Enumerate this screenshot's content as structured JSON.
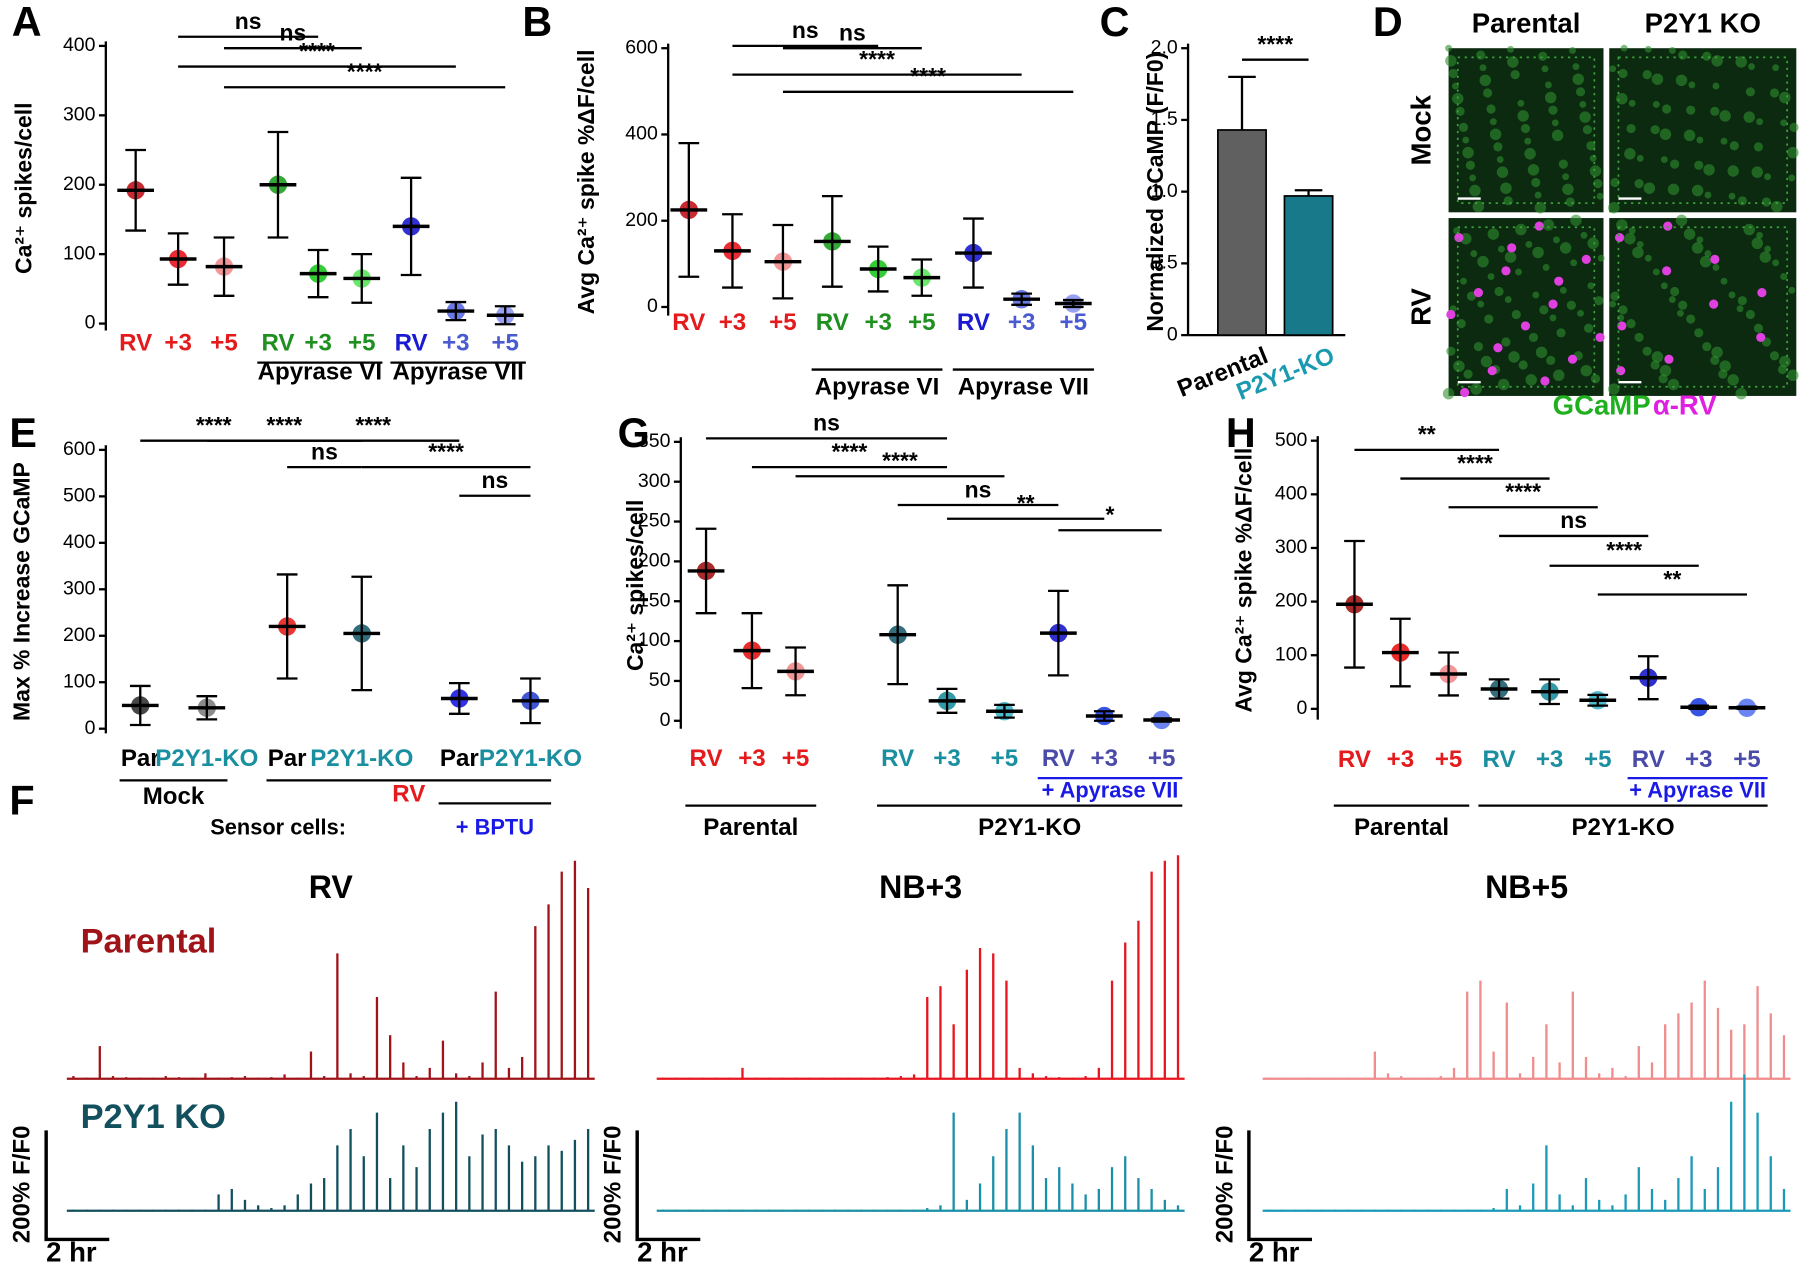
{
  "chart_data": [
    {
      "type": "dot",
      "label": "A",
      "ylabel": "Ca²⁺ spikes/cell",
      "categories": [
        "RV",
        "+3",
        "+5",
        "RV",
        "+3",
        "+5",
        "RV",
        "+3",
        "+5"
      ],
      "values": [
        192,
        93,
        82,
        200,
        72,
        65,
        140,
        18,
        12
      ],
      "errors": [
        58,
        37,
        42,
        76,
        34,
        35,
        70,
        13,
        13
      ],
      "colors": [
        "#c0141e",
        "#e8141e",
        "#f08c8c",
        "#1fa01f",
        "#1fc81f",
        "#5ae65a",
        "#1a1ad2",
        "#5a6ae0",
        "#8c96f0"
      ],
      "label_colors": [
        "#e41a1c",
        "#e41a1c",
        "#e41a1c",
        "#1f8f1f",
        "#1f8f1f",
        "#1f8f1f",
        "#1a1ad2",
        "#4a5ad0",
        "#4a5ad0"
      ],
      "ylim": [
        -10,
        400
      ],
      "yticks": [
        0,
        100,
        200,
        300,
        400
      ],
      "significance": [
        "ns",
        "ns",
        "****",
        "****"
      ],
      "groups": [
        "Apyrase VI",
        "Apyrase VII"
      ]
    },
    {
      "type": "dot",
      "label": "B",
      "ylabel": "Avg Ca²⁺ spike %ΔF/cell",
      "categories": [
        "RV",
        "+3",
        "+5",
        "RV",
        "+3",
        "+5",
        "RV",
        "+3",
        "+5"
      ],
      "values": [
        225,
        130,
        105,
        152,
        88,
        68,
        125,
        18,
        8
      ],
      "errors": [
        155,
        85,
        85,
        105,
        52,
        42,
        80,
        13,
        8
      ],
      "colors": [
        "#c0141e",
        "#e8141e",
        "#f08c8c",
        "#1fa01f",
        "#1fc81f",
        "#5ae65a",
        "#1a1ad2",
        "#5a6ae0",
        "#8c96f0"
      ],
      "label_colors": [
        "#e41a1c",
        "#e41a1c",
        "#e41a1c",
        "#1f8f1f",
        "#1f8f1f",
        "#1f8f1f",
        "#1a1ad2",
        "#4a5ad0",
        "#4a5ad0"
      ],
      "ylim": [
        -20,
        600
      ],
      "yticks": [
        0,
        200,
        400,
        600
      ],
      "significance": [
        "ns",
        "ns",
        "****",
        "****"
      ],
      "groups": [
        "Apyrase VI",
        "Apyrase VII"
      ]
    },
    {
      "type": "bar",
      "label": "C",
      "ylabel": "Normalized GCaMP (F/F0)",
      "categories": [
        "Parental",
        "P2Y1-KO"
      ],
      "values": [
        1.43,
        0.97
      ],
      "errors": [
        0.37,
        0.04
      ],
      "colors": [
        "#606060",
        "#17798a"
      ],
      "label_colors": [
        "#000000",
        "#1a9ab0"
      ],
      "ylim": [
        0,
        2.0
      ],
      "yticks": [
        0,
        0.5,
        {
          "value": 1.0,
          "label": "1.0"
        },
        1.5,
        {
          "value": 2.0,
          "label": "2.0"
        }
      ],
      "significance": [
        "****"
      ]
    },
    {
      "type": "image",
      "label": "D",
      "columns": [
        "Parental",
        "P2Y1 KO"
      ],
      "rows": [
        "Mock",
        "RV"
      ],
      "legend": [
        "GCaMP",
        "α-RV"
      ]
    },
    {
      "type": "dot",
      "label": "E",
      "ylabel": "Max % Increase GCaMP",
      "categories": [
        "Par",
        "P2Y1-KO",
        "Par",
        "P2Y1-KO",
        "Par",
        "P2Y1-KO"
      ],
      "values": [
        50,
        45,
        220,
        205,
        65,
        60
      ],
      "errors": [
        42,
        25,
        112,
        122,
        33,
        48
      ],
      "colors": [
        "#333333",
        "#808080",
        "#e8201a",
        "#1d5e6e",
        "#1a1ae6",
        "#2a44d0"
      ],
      "label_colors": [
        "#000000",
        "#1a8fa0",
        "#000000",
        "#1a8fa0",
        "#000000",
        "#1a8fa0"
      ],
      "ylim": [
        -10,
        600
      ],
      "yticks": [
        0,
        100,
        200,
        300,
        400,
        500,
        600
      ],
      "significance": [
        "****",
        "****",
        "ns",
        "****",
        "****",
        "ns"
      ],
      "groups": [
        "Mock",
        "RV"
      ],
      "note": "Sensor cells:",
      "treatment": "+ BPTU"
    },
    {
      "type": "trace",
      "label": "F",
      "titles": [
        "RV",
        "NB+3",
        "NB+5"
      ],
      "rows": [
        "Parental",
        "P2Y1 KO"
      ],
      "scale_y": "200% F/F0",
      "scale_x": "2 hr",
      "series": [
        {
          "color": "#a01419",
          "values": [
            5,
            2,
            60,
            5,
            3,
            2,
            2,
            5,
            3,
            2,
            10,
            2,
            3,
            5,
            2,
            3,
            8,
            2,
            50,
            5,
            230,
            10,
            5,
            150,
            80,
            30,
            5,
            20,
            70,
            10,
            5,
            30,
            160,
            20,
            40,
            280,
            320,
            380,
            400,
            350
          ]
        },
        {
          "color": "#12505e",
          "values": [
            2,
            2,
            2,
            2,
            2,
            2,
            2,
            2,
            2,
            2,
            2,
            30,
            40,
            20,
            10,
            5,
            10,
            30,
            50,
            60,
            120,
            150,
            100,
            180,
            60,
            120,
            80,
            150,
            180,
            200,
            100,
            140,
            150,
            120,
            90,
            100,
            120,
            110,
            130,
            150
          ]
        },
        {
          "color": "#e8141e",
          "values": [
            2,
            2,
            2,
            2,
            2,
            2,
            20,
            2,
            2,
            2,
            2,
            2,
            2,
            2,
            2,
            2,
            2,
            3,
            5,
            8,
            150,
            170,
            100,
            200,
            240,
            230,
            180,
            20,
            10,
            5,
            3,
            2,
            5,
            20,
            180,
            250,
            290,
            380,
            400,
            410
          ]
        },
        {
          "color": "#1a8fa8",
          "values": [
            2,
            2,
            2,
            2,
            2,
            2,
            2,
            2,
            2,
            2,
            2,
            2,
            2,
            2,
            2,
            2,
            2,
            2,
            2,
            2,
            5,
            10,
            180,
            20,
            50,
            100,
            150,
            180,
            120,
            60,
            80,
            50,
            30,
            40,
            80,
            100,
            60,
            40,
            20,
            10
          ]
        },
        {
          "color": "#f08c8c",
          "values": [
            2,
            2,
            2,
            2,
            2,
            2,
            2,
            2,
            50,
            10,
            5,
            2,
            2,
            5,
            20,
            160,
            180,
            50,
            140,
            10,
            40,
            100,
            30,
            160,
            40,
            10,
            20,
            5,
            60,
            30,
            100,
            120,
            140,
            180,
            130,
            90,
            100,
            170,
            120,
            80
          ]
        },
        {
          "color": "#1a9ab8",
          "values": [
            2,
            2,
            2,
            2,
            2,
            2,
            2,
            2,
            2,
            2,
            2,
            2,
            2,
            2,
            2,
            2,
            2,
            5,
            40,
            10,
            50,
            120,
            30,
            10,
            60,
            20,
            10,
            30,
            80,
            40,
            20,
            60,
            100,
            40,
            80,
            200,
            250,
            180,
            100,
            40
          ]
        }
      ]
    },
    {
      "type": "dot",
      "label": "G",
      "ylabel": "Ca²⁺ spikes/cell",
      "categories": [
        "RV",
        "+3",
        "+5",
        "RV",
        "+3",
        "+5",
        "RV",
        "+3",
        "+5"
      ],
      "values": [
        188,
        88,
        62,
        108,
        25,
        12,
        110,
        6,
        1
      ],
      "errors": [
        53,
        47,
        30,
        62,
        15,
        8,
        53,
        6,
        2
      ],
      "colors": [
        "#a01414",
        "#e81414",
        "#f08c8c",
        "#1d5e6e",
        "#1d8fa0",
        "#3cb4c8",
        "#1a1ac8",
        "#2040e0",
        "#5a78f0"
      ],
      "label_colors": [
        "#e41a1c",
        "#e41a1c",
        "#e41a1c",
        "#1a8fa0",
        "#1a8fa0",
        "#1a8fa0",
        "#4a4aa8",
        "#4a4aa8",
        "#4a4aa8"
      ],
      "ylim": [
        -10,
        350
      ],
      "yticks": [
        0,
        50,
        100,
        150,
        200,
        250,
        300,
        350
      ],
      "significance": [
        "ns",
        "****",
        "****",
        "ns",
        "**",
        "*"
      ],
      "groups": [
        "Parental",
        "P2Y1-KO"
      ],
      "treatment": "+ Apyrase VII"
    },
    {
      "type": "dot",
      "label": "H",
      "ylabel": "Avg Ca²⁺ spike %ΔF/cell",
      "categories": [
        "RV",
        "+3",
        "+5",
        "RV",
        "+3",
        "+5",
        "RV",
        "+3",
        "+5"
      ],
      "values": [
        195,
        105,
        65,
        37,
        32,
        16,
        58,
        3,
        2
      ],
      "errors": [
        118,
        63,
        40,
        18,
        23,
        10,
        40,
        3,
        2
      ],
      "colors": [
        "#a01414",
        "#e81414",
        "#f08c8c",
        "#1d5e6e",
        "#1d8fa0",
        "#3cb4c8",
        "#1a1ac8",
        "#2040e0",
        "#5a78f0"
      ],
      "label_colors": [
        "#e41a1c",
        "#e41a1c",
        "#e41a1c",
        "#1a8fa0",
        "#1a8fa0",
        "#1a8fa0",
        "#4a4aa8",
        "#4a4aa8",
        "#4a4aa8"
      ],
      "ylim": [
        -20,
        500
      ],
      "yticks": [
        0,
        100,
        200,
        300,
        400,
        500
      ],
      "significance": [
        "**",
        "****",
        "****",
        "ns",
        "****",
        "**"
      ],
      "groups": [
        "Parental",
        "P2Y1-KO"
      ],
      "treatment": "+ Apyrase VII"
    }
  ]
}
